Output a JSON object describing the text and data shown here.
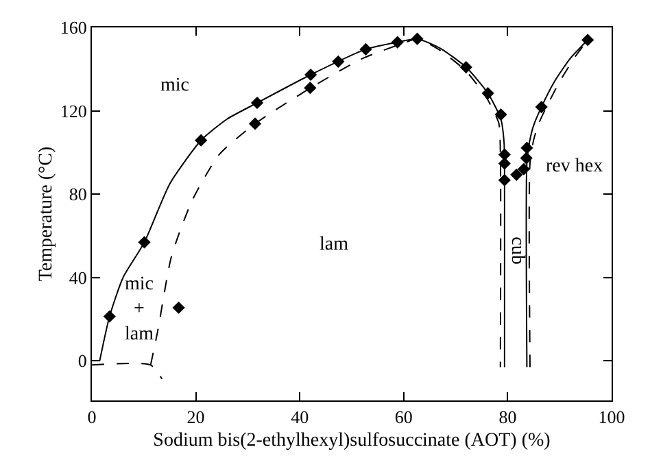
{
  "chart_data": {
    "type": "scatter",
    "xlabel": "Sodium bis(2-ethylhexyl)sulfosuccinate (AOT) (%)",
    "ylabel": "Temperature (°C)",
    "xlim": [
      0,
      100
    ],
    "ylim": [
      -19,
      160
    ],
    "xticks": [
      0,
      20,
      40,
      60,
      80,
      100
    ],
    "yticks": [
      0,
      40,
      80,
      120,
      160
    ],
    "series": [
      {
        "type": "line",
        "line_style": "solid",
        "marker": "none",
        "color": "#000000",
        "x": [
          1.5,
          3.4,
          6,
          10.1,
          15,
          21,
          26,
          31.8,
          42.1,
          52.7,
          58.8,
          62.6,
          67,
          72,
          76.2,
          78.7,
          79.3,
          79.4,
          79.4
        ],
        "values": [
          0,
          21.3,
          40,
          56.9,
          85,
          105.8,
          116,
          123.8,
          137.3,
          149.5,
          152.9,
          154.5,
          150,
          140.9,
          128.4,
          116,
          105,
          95,
          -3
        ]
      },
      {
        "type": "line",
        "line_style": "solid",
        "marker": "none",
        "color": "#000000",
        "x": [
          83.7,
          83.7,
          84.2,
          85,
          86.5,
          89,
          92,
          95.4
        ],
        "values": [
          -3,
          95,
          105,
          113,
          121.8,
          134,
          145,
          154
        ]
      },
      {
        "type": "line",
        "line_style": "dashed",
        "marker": "none",
        "color": "#000000",
        "x": [
          0,
          11.3,
          13.5
        ],
        "values": [
          -2,
          -2,
          -8.7
        ]
      },
      {
        "type": "line",
        "line_style": "dashed",
        "marker": "none",
        "color": "#000000",
        "x": [
          11.3,
          12.7,
          15.3,
          19.3,
          24.5,
          31.4,
          42.1,
          52,
          60,
          62.6,
          67,
          72,
          76,
          78.3,
          78.6,
          78.6
        ],
        "values": [
          -2,
          14.7,
          50,
          77,
          99,
          113.8,
          131,
          145,
          152.5,
          154.5,
          149,
          139,
          126,
          114,
          100,
          -3
        ]
      },
      {
        "type": "line",
        "line_style": "dashed",
        "marker": "none",
        "color": "#000000",
        "x": [
          84.3,
          84.3,
          85,
          86,
          87.5,
          90,
          93,
          95.4
        ],
        "values": [
          -3,
          95,
          106,
          114,
          122,
          134,
          146,
          154
        ]
      },
      {
        "marker": "diamond",
        "color": "#000000",
        "x": [
          3.4,
          10.1,
          16.7,
          21.0,
          31.8,
          31.4,
          42.1,
          42.0,
          47.4,
          52.7,
          58.8,
          62.6,
          72.0,
          76.2,
          78.7,
          79.4,
          79.4,
          79.4,
          81.7,
          83.1,
          83.6,
          83.7,
          86.5,
          95.4
        ],
        "values": [
          21.3,
          56.9,
          25.5,
          105.8,
          123.8,
          113.8,
          137.3,
          131,
          143.6,
          149.5,
          152.9,
          154.5,
          140.9,
          128.4,
          118.2,
          99,
          94.7,
          86.7,
          89.3,
          92,
          97.3,
          102.2,
          121.8,
          154
        ]
      }
    ],
    "annotations": [
      "mic",
      "lam",
      "mic\n+\nlam",
      "cub",
      "rev hex"
    ]
  }
}
